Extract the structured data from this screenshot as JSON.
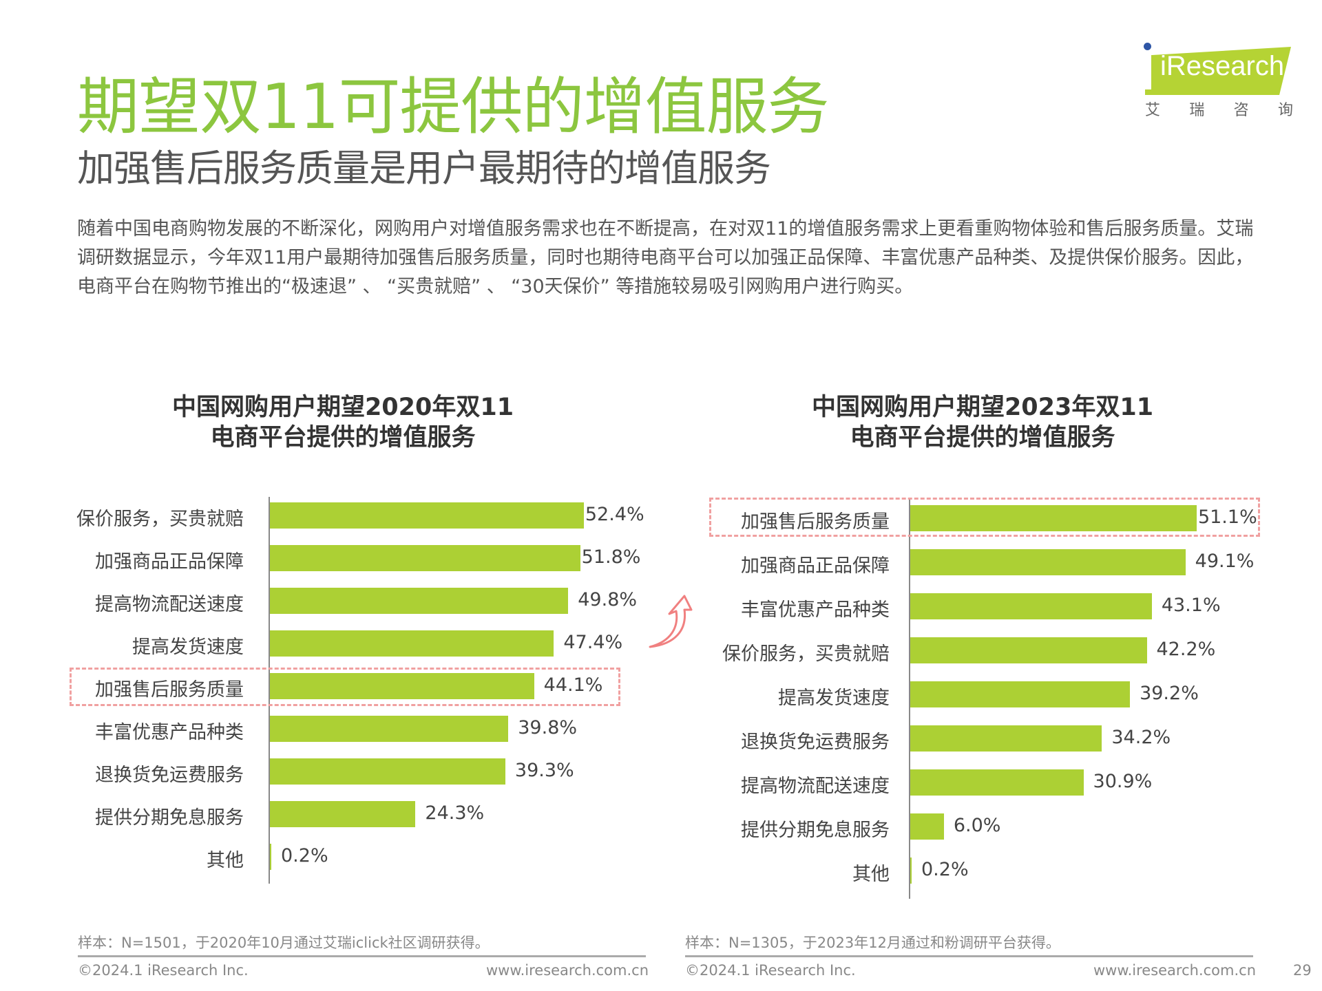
{
  "header": {
    "title": "期望双11可提供的增值服务",
    "subtitle": "加强售后服务质量是用户最期待的增值服务",
    "paragraph": "随着中国电商购物发展的不断深化，网购用户对增值服务需求也在不断提高，在对双11的增值服务需求上更看重购物体验和售后服务质量。艾瑞调研数据显示，今年双11用户最期待加强售后服务质量，同时也期待电商平台可以加强正品保障、丰富优惠产品种类、及提供保价服务。因此，电商平台在购物节推出的“极速退” 、 “买贵就赔” 、 “30天保价” 等措施较易吸引网购用户进行购买。"
  },
  "logo": {
    "brand": "iResearch",
    "cn": [
      "艾",
      "瑞",
      "咨",
      "询"
    ],
    "color": "#b5d334"
  },
  "chart_data": [
    {
      "type": "bar",
      "orientation": "horizontal",
      "title": [
        "中国网购用户期望2020年双11",
        "电商平台提供的增值服务"
      ],
      "categories": [
        "保价服务，买贵就赔",
        "加强商品正品保障",
        "提高物流配送速度",
        "提高发货速度",
        "加强售后服务质量",
        "丰富优惠产品种类",
        "退换货免运费服务",
        "提供分期免息服务",
        "其他"
      ],
      "values": [
        52.4,
        51.8,
        49.8,
        47.4,
        44.1,
        39.8,
        39.3,
        24.3,
        0.2
      ],
      "labels": [
        "52.4%",
        "51.8%",
        "49.8%",
        "47.4%",
        "44.1%",
        "39.8%",
        "39.3%",
        "24.3%",
        "0.2%"
      ],
      "highlight": "加强售后服务质量",
      "color": "#acd034",
      "unit": "%"
    },
    {
      "type": "bar",
      "orientation": "horizontal",
      "title": [
        "中国网购用户期望2023年双11",
        "电商平台提供的增值服务"
      ],
      "categories": [
        "加强售后服务质量",
        "加强商品正品保障",
        "丰富优惠产品种类",
        "保价服务，买贵就赔",
        "提高发货速度",
        "退换货免运费服务",
        "提高物流配送速度",
        "提供分期免息服务",
        "其他"
      ],
      "values": [
        51.1,
        49.1,
        43.1,
        42.2,
        39.2,
        34.2,
        30.9,
        6.0,
        0.2
      ],
      "labels": [
        "51.1%",
        "49.1%",
        "43.1%",
        "42.2%",
        "39.2%",
        "34.2%",
        "30.9%",
        "6.0%",
        "0.2%"
      ],
      "highlight": "加强售后服务质量",
      "color": "#acd034",
      "unit": "%"
    }
  ],
  "footer": {
    "left_note": "样本：N=1501，于2020年10月通过艾瑞iclick社区调研获得。",
    "right_note": "样本：N=1305，于2023年12月通过和粉调研平台获得。",
    "copyright": "©2024.1 iResearch Inc.",
    "website": "www.iresearch.com.cn",
    "page": "29"
  }
}
